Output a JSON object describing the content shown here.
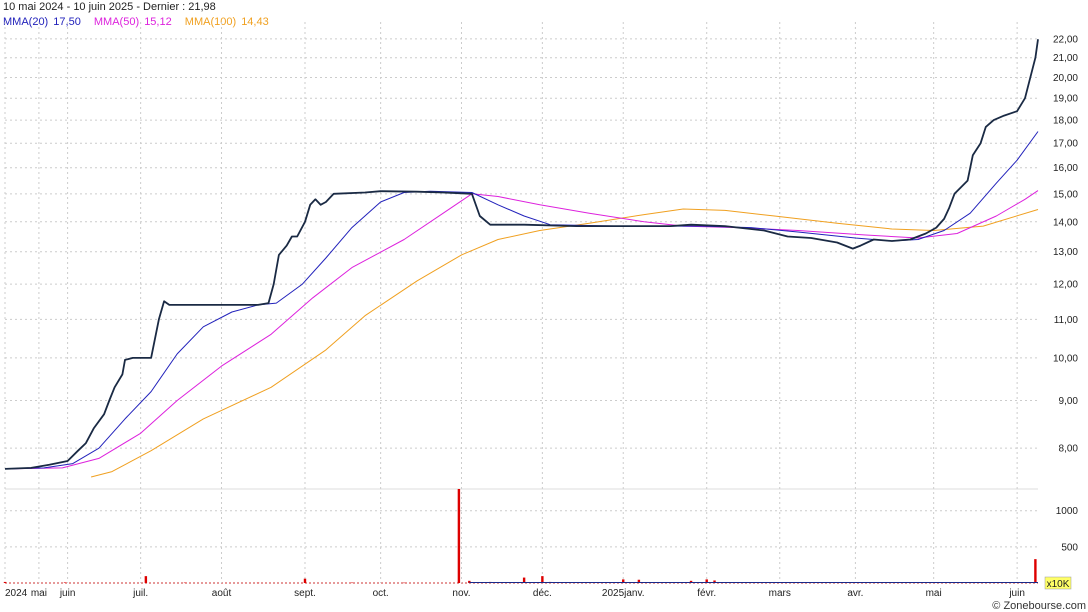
{
  "chart_data": {
    "type": "line",
    "title": "10 mai 2024 - 10 juin 2025 - Dernier : 21,98",
    "source": "© Zonebourse.com",
    "volume_unit": "x10K",
    "colors": {
      "price": "#1a2a44",
      "mma20": "#2222bb",
      "mma50": "#dd22dd",
      "mma100": "#f0a020",
      "volume": "#dd0000",
      "grid": "#cccccc"
    },
    "legend": [
      {
        "name": "MMA(20)",
        "value": "17,50",
        "color": "#2222bb"
      },
      {
        "name": "MMA(50)",
        "value": "15,12",
        "color": "#dd22dd"
      },
      {
        "name": "MMA(100)",
        "value": "14,43",
        "color": "#f0a020"
      }
    ],
    "price_axis": {
      "scale": "log",
      "range": [
        7.25,
        22.6
      ],
      "ticks": [
        8,
        9,
        10,
        11,
        12,
        13,
        14,
        15,
        16,
        17,
        18,
        19,
        20,
        21,
        22
      ],
      "tick_labels": [
        "8,00",
        "9,00",
        "10,00",
        "11,00",
        "12,00",
        "13,00",
        "14,00",
        "15,00",
        "16,00",
        "17,00",
        "18,00",
        "19,00",
        "20,00",
        "21,00",
        "22,00"
      ]
    },
    "volume_axis": {
      "range": [
        0,
        1300
      ],
      "ticks": [
        500,
        1000
      ],
      "tick_labels": [
        "500",
        "1000"
      ]
    },
    "x_axis": {
      "range": [
        "2024-05-10",
        "2025-06-10"
      ],
      "ticks": [
        {
          "date": "2024-05-10",
          "label": "2024"
        },
        {
          "date": "2024-05-23",
          "label": "mai"
        },
        {
          "date": "2024-06-03",
          "label": "juin"
        },
        {
          "date": "2024-07-01",
          "label": "juil."
        },
        {
          "date": "2024-08-01",
          "label": "août"
        },
        {
          "date": "2024-09-02",
          "label": "sept."
        },
        {
          "date": "2024-10-01",
          "label": "oct."
        },
        {
          "date": "2024-11-01",
          "label": "nov."
        },
        {
          "date": "2024-12-02",
          "label": "déc."
        },
        {
          "date": "2025-01-02",
          "label": "2025janv."
        },
        {
          "date": "2025-02-03",
          "label": "févr."
        },
        {
          "date": "2025-03-03",
          "label": "mars"
        },
        {
          "date": "2025-04-01",
          "label": "avr."
        },
        {
          "date": "2025-05-01",
          "label": "mai"
        },
        {
          "date": "2025-06-02",
          "label": "juin"
        }
      ]
    },
    "series": [
      {
        "name": "price",
        "points": [
          [
            "2024-05-10",
            7.6
          ],
          [
            "2024-05-20",
            7.62
          ],
          [
            "2024-05-27",
            7.68
          ],
          [
            "2024-06-03",
            7.75
          ],
          [
            "2024-06-07",
            7.95
          ],
          [
            "2024-06-10",
            8.1
          ],
          [
            "2024-06-13",
            8.4
          ],
          [
            "2024-06-17",
            8.7
          ],
          [
            "2024-06-19",
            9.0
          ],
          [
            "2024-06-21",
            9.3
          ],
          [
            "2024-06-24",
            9.6
          ],
          [
            "2024-06-25",
            9.95
          ],
          [
            "2024-06-28",
            10.0
          ],
          [
            "2024-07-05",
            10.0
          ],
          [
            "2024-07-08",
            11.0
          ],
          [
            "2024-07-10",
            11.5
          ],
          [
            "2024-07-12",
            11.4
          ],
          [
            "2024-07-22",
            11.4
          ],
          [
            "2024-08-05",
            11.4
          ],
          [
            "2024-08-15",
            11.4
          ],
          [
            "2024-08-19",
            11.45
          ],
          [
            "2024-08-21",
            12.0
          ],
          [
            "2024-08-23",
            12.9
          ],
          [
            "2024-08-26",
            13.2
          ],
          [
            "2024-08-28",
            13.5
          ],
          [
            "2024-08-30",
            13.5
          ],
          [
            "2024-09-02",
            14.0
          ],
          [
            "2024-09-04",
            14.6
          ],
          [
            "2024-09-06",
            14.8
          ],
          [
            "2024-09-08",
            14.6
          ],
          [
            "2024-09-10",
            14.7
          ],
          [
            "2024-09-13",
            15.0
          ],
          [
            "2024-09-25",
            15.05
          ],
          [
            "2024-10-01",
            15.1
          ],
          [
            "2024-10-15",
            15.08
          ],
          [
            "2024-10-25",
            15.05
          ],
          [
            "2024-11-05",
            15.0
          ],
          [
            "2024-11-08",
            14.2
          ],
          [
            "2024-11-12",
            13.9
          ],
          [
            "2024-11-25",
            13.9
          ],
          [
            "2024-12-15",
            13.85
          ],
          [
            "2025-01-01",
            13.85
          ],
          [
            "2025-01-20",
            13.85
          ],
          [
            "2025-01-28",
            13.9
          ],
          [
            "2025-02-10",
            13.85
          ],
          [
            "2025-02-25",
            13.7
          ],
          [
            "2025-03-06",
            13.5
          ],
          [
            "2025-03-15",
            13.45
          ],
          [
            "2025-03-25",
            13.3
          ],
          [
            "2025-03-31",
            13.1
          ],
          [
            "2025-04-03",
            13.2
          ],
          [
            "2025-04-08",
            13.4
          ],
          [
            "2025-04-15",
            13.35
          ],
          [
            "2025-04-22",
            13.4
          ],
          [
            "2025-04-28",
            13.6
          ],
          [
            "2025-05-02",
            13.8
          ],
          [
            "2025-05-05",
            14.1
          ],
          [
            "2025-05-07",
            14.5
          ],
          [
            "2025-05-09",
            15.0
          ],
          [
            "2025-05-14",
            15.5
          ],
          [
            "2025-05-16",
            16.5
          ],
          [
            "2025-05-19",
            17.0
          ],
          [
            "2025-05-21",
            17.7
          ],
          [
            "2025-05-24",
            18.0
          ],
          [
            "2025-05-28",
            18.2
          ],
          [
            "2025-06-02",
            18.4
          ],
          [
            "2025-06-05",
            19.0
          ],
          [
            "2025-06-09",
            21.0
          ],
          [
            "2025-06-10",
            21.98
          ]
        ]
      },
      {
        "name": "MMA(20)",
        "points": [
          [
            "2024-05-10",
            7.6
          ],
          [
            "2024-05-25",
            7.62
          ],
          [
            "2024-06-05",
            7.7
          ],
          [
            "2024-06-15",
            8.0
          ],
          [
            "2024-06-25",
            8.6
          ],
          [
            "2024-07-05",
            9.2
          ],
          [
            "2024-07-15",
            10.1
          ],
          [
            "2024-07-25",
            10.8
          ],
          [
            "2024-08-05",
            11.2
          ],
          [
            "2024-08-15",
            11.4
          ],
          [
            "2024-08-22",
            11.45
          ],
          [
            "2024-09-01",
            12.0
          ],
          [
            "2024-09-10",
            12.8
          ],
          [
            "2024-09-20",
            13.8
          ],
          [
            "2024-10-01",
            14.7
          ],
          [
            "2024-10-10",
            15.05
          ],
          [
            "2024-10-20",
            15.1
          ],
          [
            "2024-11-05",
            15.05
          ],
          [
            "2024-11-15",
            14.6
          ],
          [
            "2024-11-25",
            14.2
          ],
          [
            "2024-12-05",
            13.9
          ],
          [
            "2025-01-01",
            13.85
          ],
          [
            "2025-02-01",
            13.85
          ],
          [
            "2025-02-20",
            13.8
          ],
          [
            "2025-03-10",
            13.65
          ],
          [
            "2025-04-01",
            13.45
          ],
          [
            "2025-04-15",
            13.35
          ],
          [
            "2025-04-25",
            13.4
          ],
          [
            "2025-05-05",
            13.7
          ],
          [
            "2025-05-15",
            14.3
          ],
          [
            "2025-05-25",
            15.4
          ],
          [
            "2025-06-02",
            16.3
          ],
          [
            "2025-06-10",
            17.5
          ]
        ]
      },
      {
        "name": "MMA(50)",
        "points": [
          [
            "2024-05-10",
            7.6
          ],
          [
            "2024-06-01",
            7.62
          ],
          [
            "2024-06-15",
            7.8
          ],
          [
            "2024-07-01",
            8.3
          ],
          [
            "2024-07-15",
            9.0
          ],
          [
            "2024-08-01",
            9.8
          ],
          [
            "2024-08-20",
            10.6
          ],
          [
            "2024-09-05",
            11.6
          ],
          [
            "2024-09-20",
            12.5
          ],
          [
            "2024-10-10",
            13.4
          ],
          [
            "2024-10-25",
            14.3
          ],
          [
            "2024-11-05",
            15.0
          ],
          [
            "2024-11-15",
            14.9
          ],
          [
            "2024-12-01",
            14.6
          ],
          [
            "2024-12-20",
            14.3
          ],
          [
            "2025-01-10",
            14.0
          ],
          [
            "2025-01-25",
            13.85
          ],
          [
            "2025-02-15",
            13.8
          ],
          [
            "2025-03-10",
            13.7
          ],
          [
            "2025-04-05",
            13.55
          ],
          [
            "2025-04-25",
            13.45
          ],
          [
            "2025-05-10",
            13.6
          ],
          [
            "2025-05-25",
            14.2
          ],
          [
            "2025-06-05",
            14.8
          ],
          [
            "2025-06-10",
            15.12
          ]
        ]
      },
      {
        "name": "MMA(100)",
        "points": [
          [
            "2024-06-12",
            7.45
          ],
          [
            "2024-06-20",
            7.55
          ],
          [
            "2024-07-05",
            7.95
          ],
          [
            "2024-07-25",
            8.6
          ],
          [
            "2024-08-20",
            9.3
          ],
          [
            "2024-09-10",
            10.2
          ],
          [
            "2024-09-25",
            11.1
          ],
          [
            "2024-10-15",
            12.1
          ],
          [
            "2024-11-01",
            12.9
          ],
          [
            "2024-11-15",
            13.4
          ],
          [
            "2024-12-01",
            13.7
          ],
          [
            "2024-12-20",
            13.95
          ],
          [
            "2025-01-10",
            14.25
          ],
          [
            "2025-01-25",
            14.45
          ],
          [
            "2025-02-10",
            14.4
          ],
          [
            "2025-03-01",
            14.2
          ],
          [
            "2025-03-25",
            13.95
          ],
          [
            "2025-04-15",
            13.75
          ],
          [
            "2025-05-01",
            13.7
          ],
          [
            "2025-05-20",
            13.85
          ],
          [
            "2025-06-10",
            14.43
          ]
        ]
      }
    ],
    "volume": [
      [
        "2024-05-10",
        15
      ],
      [
        "2024-06-02",
        8
      ],
      [
        "2024-07-03",
        95
      ],
      [
        "2024-07-18",
        6
      ],
      [
        "2024-08-15",
        5
      ],
      [
        "2024-09-02",
        60
      ],
      [
        "2024-09-20",
        6
      ],
      [
        "2024-10-10",
        5
      ],
      [
        "2024-10-31",
        1430
      ],
      [
        "2024-11-04",
        30
      ],
      [
        "2024-11-12",
        15
      ],
      [
        "2024-11-22",
        12
      ],
      [
        "2024-11-25",
        75
      ],
      [
        "2024-12-02",
        95
      ],
      [
        "2024-12-05",
        15
      ],
      [
        "2024-12-20",
        12
      ],
      [
        "2025-01-02",
        50
      ],
      [
        "2025-01-08",
        45
      ],
      [
        "2025-01-20",
        10
      ],
      [
        "2025-01-28",
        30
      ],
      [
        "2025-02-03",
        50
      ],
      [
        "2025-02-06",
        35
      ],
      [
        "2025-02-18",
        8
      ],
      [
        "2025-03-12",
        6
      ],
      [
        "2025-04-25",
        6
      ],
      [
        "2025-05-01",
        10
      ],
      [
        "2025-06-09",
        330
      ]
    ]
  }
}
